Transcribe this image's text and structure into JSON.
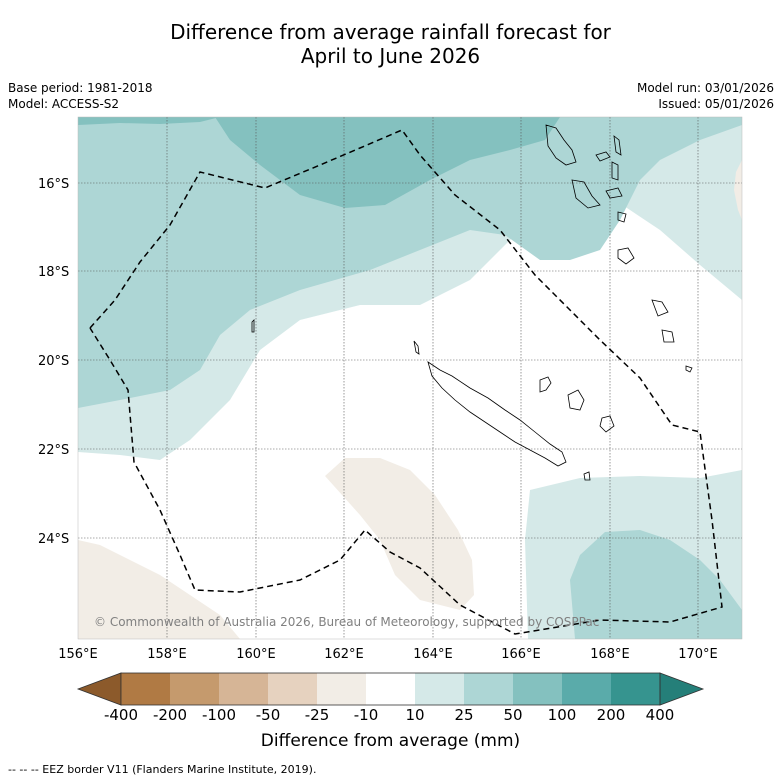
{
  "title": {
    "line1": "Difference from average rainfall forecast for",
    "line2": "April to June 2026"
  },
  "meta_left": {
    "base_period": "Base period: 1981-2018",
    "model": "Model: ACCESS-S2"
  },
  "meta_right": {
    "model_run": "Model run: 03/01/2026",
    "issued": "Issued: 05/01/2026"
  },
  "map": {
    "lat_labels": [
      "16°S",
      "18°S",
      "20°S",
      "22°S",
      "24°S"
    ],
    "lon_labels": [
      "156°E",
      "158°E",
      "160°E",
      "162°E",
      "164°E",
      "166°E",
      "168°E",
      "170°E"
    ],
    "copyright": "© Commonwealth of Australia 2026, Bureau of Meteorology, supported by COSPPac"
  },
  "colorbar": {
    "label": "Difference from average (mm)",
    "ticks": [
      "-400",
      "-200",
      "-100",
      "-50",
      "-25",
      "-10",
      "10",
      "25",
      "50",
      "100",
      "200",
      "400"
    ],
    "colors": {
      "below_min": "#8c5a2b",
      "bins": [
        "#b07a44",
        "#c59a6d",
        "#d6b596",
        "#e6d2bf",
        "#f2ede6",
        "#ffffff",
        "#d5e9e8",
        "#add6d5",
        "#84c1bf",
        "#5aabaa",
        "#36948f"
      ],
      "above_max": "#257f79"
    }
  },
  "footnote": "--  --  -- EEZ border V11 (Flanders Marine Institute, 2019)."
}
